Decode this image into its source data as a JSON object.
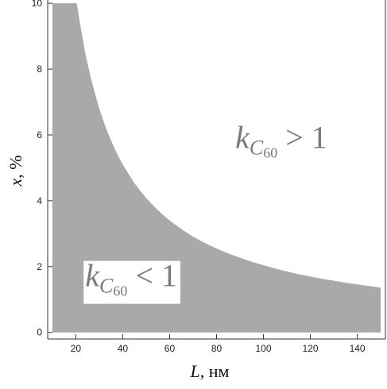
{
  "chart_data": {
    "type": "area",
    "title": "",
    "xlabel": {
      "var": "L",
      "unit": ", нм"
    },
    "ylabel": {
      "var": "x",
      "unit": ", %"
    },
    "xlim": [
      8,
      152
    ],
    "ylim": [
      -0.2,
      10.1
    ],
    "x_ticks": [
      20,
      40,
      60,
      80,
      100,
      120,
      140
    ],
    "y_ticks": [
      0,
      2,
      4,
      6,
      8,
      10
    ],
    "fill_color": "#a9a9a9",
    "frame_color": "#333333",
    "grid": false,
    "region": {
      "x_start": 10,
      "x_end": 150,
      "lower_bound": 0,
      "upper_bound_points": [
        [
          10,
          10
        ],
        [
          20.4,
          10
        ],
        [
          22,
          9.3
        ],
        [
          24,
          8.5
        ],
        [
          26,
          7.85
        ],
        [
          28,
          7.3
        ],
        [
          30,
          6.8
        ],
        [
          32,
          6.38
        ],
        [
          34,
          6.0
        ],
        [
          36,
          5.67
        ],
        [
          38,
          5.37
        ],
        [
          40,
          5.1
        ],
        [
          45,
          4.53
        ],
        [
          50,
          4.08
        ],
        [
          55,
          3.71
        ],
        [
          60,
          3.4
        ],
        [
          65,
          3.14
        ],
        [
          70,
          2.91
        ],
        [
          75,
          2.72
        ],
        [
          80,
          2.55
        ],
        [
          85,
          2.4
        ],
        [
          90,
          2.27
        ],
        [
          95,
          2.15
        ],
        [
          100,
          2.04
        ],
        [
          105,
          1.94
        ],
        [
          110,
          1.85
        ],
        [
          115,
          1.77
        ],
        [
          120,
          1.7
        ],
        [
          125,
          1.63
        ],
        [
          130,
          1.57
        ],
        [
          135,
          1.51
        ],
        [
          140,
          1.46
        ],
        [
          145,
          1.41
        ],
        [
          150,
          1.36
        ]
      ]
    },
    "annotations": [
      {
        "base": "k",
        "sub": "C",
        "subsub": "60",
        "rel": "> 1",
        "x": 88,
        "y": 5.6,
        "boxed": false
      },
      {
        "base": "k",
        "sub": "C",
        "subsub": "60",
        "rel": "< 1",
        "x": 24,
        "y": 1.4,
        "boxed": true
      }
    ]
  }
}
